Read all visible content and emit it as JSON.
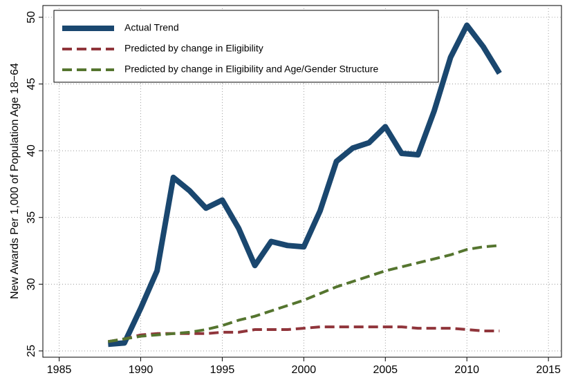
{
  "chart_data": {
    "type": "line",
    "y_label": "New Awards Per 1,000 of Population Age 18−64",
    "x": [
      1988,
      1989,
      1990,
      1991,
      1992,
      1993,
      1994,
      1995,
      1996,
      1997,
      1998,
      1999,
      2000,
      2001,
      2002,
      2003,
      2004,
      2005,
      2006,
      2007,
      2008,
      2009,
      2010,
      2011,
      2012
    ],
    "series": [
      {
        "name": "Actual Trend",
        "color": "#1a476f",
        "dash": false,
        "values": [
          25.5,
          25.6,
          28.2,
          31.0,
          38.0,
          37.0,
          35.7,
          36.3,
          34.2,
          31.4,
          33.2,
          32.9,
          32.8,
          35.5,
          39.2,
          40.2,
          40.6,
          41.8,
          39.8,
          39.7,
          43.0,
          47.0,
          49.4,
          47.8,
          45.8
        ]
      },
      {
        "name": "Predicted by change in Eligibility",
        "color": "#90353b",
        "dash": true,
        "values": [
          25.7,
          25.9,
          26.2,
          26.3,
          26.3,
          26.3,
          26.3,
          26.4,
          26.4,
          26.6,
          26.6,
          26.6,
          26.7,
          26.8,
          26.8,
          26.8,
          26.8,
          26.8,
          26.8,
          26.7,
          26.7,
          26.7,
          26.6,
          26.5,
          26.5
        ]
      },
      {
        "name": "Predicted by change in Eligibility and Age/Gender Structure",
        "color": "#55752f",
        "dash": true,
        "values": [
          25.7,
          25.9,
          26.1,
          26.2,
          26.3,
          26.4,
          26.6,
          26.9,
          27.3,
          27.6,
          28.0,
          28.4,
          28.8,
          29.3,
          29.8,
          30.2,
          30.6,
          31.0,
          31.3,
          31.6,
          31.9,
          32.2,
          32.6,
          32.8,
          32.9
        ]
      }
    ],
    "xlim": [
      1984,
      2015.8
    ],
    "xticks": [
      1985,
      1990,
      1995,
      2000,
      2005,
      2010,
      2015
    ],
    "ylim": [
      24.53,
      50.88
    ],
    "yticks": [
      25,
      30,
      35,
      40,
      45,
      50
    ],
    "grid": true,
    "legend": "top-left"
  }
}
